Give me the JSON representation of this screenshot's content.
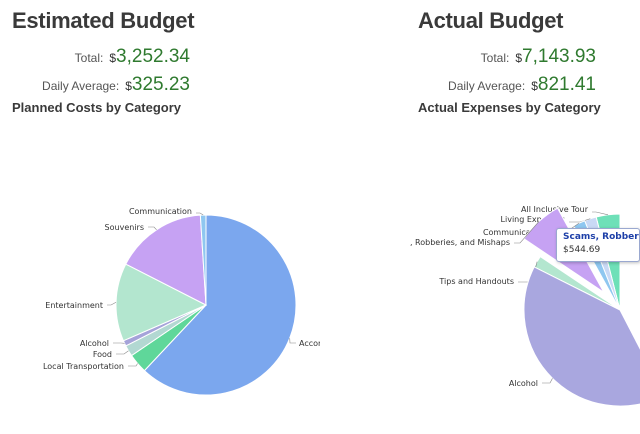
{
  "estimated": {
    "title": "Estimated Budget",
    "total_label": "Total:",
    "total_currency": "$",
    "total_value": "3,252.34",
    "daily_label": "Daily Average:",
    "daily_currency": "$",
    "daily_value": "325.23",
    "chart_title": "Planned Costs by Category"
  },
  "actual": {
    "title": "Actual Budget",
    "total_label": "Total:",
    "total_currency": "$",
    "total_value": "7,143.93",
    "daily_label": "Daily Average:",
    "daily_currency": "$",
    "daily_value": "821.41",
    "chart_title": "Actual Expenses by Category",
    "tooltip": {
      "title": "Scams, Robberies",
      "value": "$544.69"
    }
  },
  "colors": {
    "value_green": "#2f7a2f",
    "tooltip_title": "#1d3fa8"
  },
  "chart_data": [
    {
      "type": "pie",
      "title": "Planned Costs by Category",
      "slices": [
        {
          "label": "Accommodation",
          "value": 62.0,
          "color": "#7ba7ee"
        },
        {
          "label": "Local Transportation",
          "value": 3.5,
          "color": "#5fd79a"
        },
        {
          "label": "Food",
          "value": 2.0,
          "color": "#b2d8d2"
        },
        {
          "label": "Alcohol",
          "value": 1.0,
          "color": "#a5a3d9"
        },
        {
          "label": "Entertainment",
          "value": 14.0,
          "color": "#b3e6cf"
        },
        {
          "label": "Souvenirs",
          "value": 16.5,
          "color": "#c6a2f3"
        },
        {
          "label": "Communication",
          "value": 1.0,
          "color": "#8fc7f0"
        }
      ]
    },
    {
      "type": "pie",
      "title": "Actual Expenses by Category",
      "slices": [
        {
          "label": "All Inclusive Tour",
          "value": 4,
          "color": "#6ee0b8"
        },
        {
          "label": "Living Expenses",
          "value": 2,
          "color": "#c9d9f5"
        },
        {
          "label": "Communication",
          "value": 2,
          "color": "#8fc7f0"
        },
        {
          "label": "Scams, Robberies, and Mishaps",
          "value": 7.6,
          "color": "#c6a2f3"
        },
        {
          "label": "Tips and Handouts",
          "value": 2,
          "color": "#b3e6cf"
        },
        {
          "label": "Alcohol",
          "value": 40,
          "color": "#a9a7df"
        }
      ]
    }
  ]
}
